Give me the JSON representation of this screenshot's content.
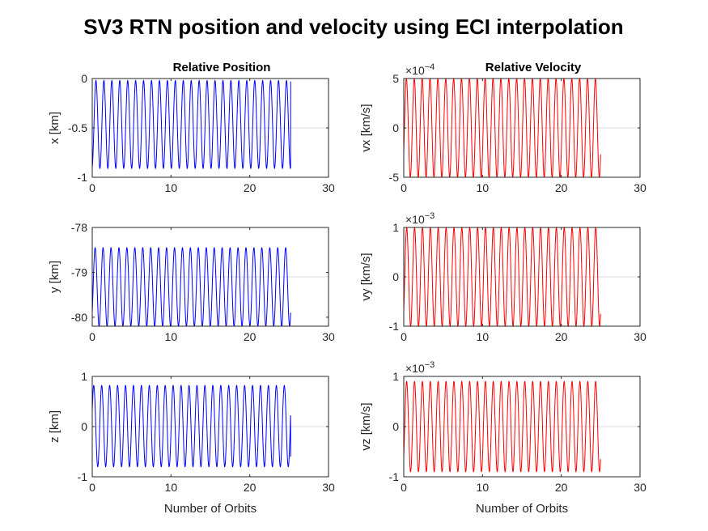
{
  "figure_title": "SV3 RTN position and velocity using ECI interpolation",
  "colors": {
    "position": "#0000ff",
    "velocity": "#ff0000"
  },
  "chart_data": [
    {
      "type": "line",
      "title": "Relative Position",
      "xlabel": "",
      "ylabel": "x [km]",
      "xlim": [
        0,
        30
      ],
      "ylim": [
        -1,
        0
      ],
      "xticks": [
        "0",
        "10",
        "20",
        "30"
      ],
      "yticks": [
        "0",
        "-0.5",
        "-1"
      ],
      "exponent": "",
      "grid": "y-zero-line",
      "color": "#0000ff",
      "series": [
        {
          "x_end": 25.2,
          "cycles": 25,
          "min": -0.91,
          "max": -0.02,
          "start": -0.9,
          "end": -0.03
        }
      ]
    },
    {
      "type": "line",
      "title": "Relative Velocity",
      "xlabel": "",
      "ylabel": "vx [km/s]",
      "xlim": [
        0,
        30
      ],
      "ylim": [
        -5,
        5
      ],
      "xticks": [
        "0",
        "10",
        "20",
        "30"
      ],
      "yticks": [
        "5",
        "0",
        "-5"
      ],
      "exponent": "×10−4",
      "color": "#ff0000",
      "series": [
        {
          "x_end": 25,
          "cycles": 25,
          "min": -5,
          "max": 5,
          "start": -2.5,
          "end": -2.7
        }
      ]
    },
    {
      "type": "line",
      "title": "",
      "xlabel": "",
      "ylabel": "y [km]",
      "xlim": [
        0,
        30
      ],
      "ylim": [
        -80.2,
        -78
      ],
      "xticks": [
        "0",
        "10",
        "20",
        "30"
      ],
      "yticks": [
        "-78",
        "-79",
        "-80"
      ],
      "exponent": "",
      "color": "#0000ff",
      "series": [
        {
          "x_end": 25.2,
          "cycles": 25,
          "min": -80.2,
          "max": -78.45,
          "start": -79.9,
          "end": -79.9
        }
      ]
    },
    {
      "type": "line",
      "title": "",
      "xlabel": "",
      "ylabel": "vy [km/s]",
      "xlim": [
        0,
        30
      ],
      "ylim": [
        -1,
        1
      ],
      "xticks": [
        "0",
        "10",
        "20",
        "30"
      ],
      "yticks": [
        "1",
        "0",
        "-1"
      ],
      "exponent": "×10−3",
      "color": "#ff0000",
      "series": [
        {
          "x_end": 25,
          "cycles": 25,
          "min": -1,
          "max": 1,
          "start": -0.7,
          "end": -0.75
        }
      ]
    },
    {
      "type": "line",
      "title": "",
      "xlabel": "Number of Orbits",
      "ylabel": "z [km]",
      "xlim": [
        0,
        30
      ],
      "ylim": [
        -1,
        1
      ],
      "xticks": [
        "0",
        "10",
        "20",
        "30"
      ],
      "yticks": [
        "1",
        "0",
        "-1"
      ],
      "exponent": "",
      "color": "#0000ff",
      "series": [
        {
          "x_end": 25.2,
          "cycles": 25,
          "min": -0.8,
          "max": 0.82,
          "start": 0.3,
          "end": -0.6
        }
      ]
    },
    {
      "type": "line",
      "title": "",
      "xlabel": "Number of Orbits",
      "ylabel": "vz [km/s]",
      "xlim": [
        0,
        30
      ],
      "ylim": [
        -1,
        1
      ],
      "xticks": [
        "0",
        "10",
        "20",
        "30"
      ],
      "yticks": [
        "1",
        "0",
        "-1"
      ],
      "exponent": "×10−3",
      "color": "#ff0000",
      "series": [
        {
          "x_end": 25,
          "cycles": 25,
          "min": -0.9,
          "max": 0.9,
          "start": -0.6,
          "end": -0.65
        }
      ]
    }
  ]
}
